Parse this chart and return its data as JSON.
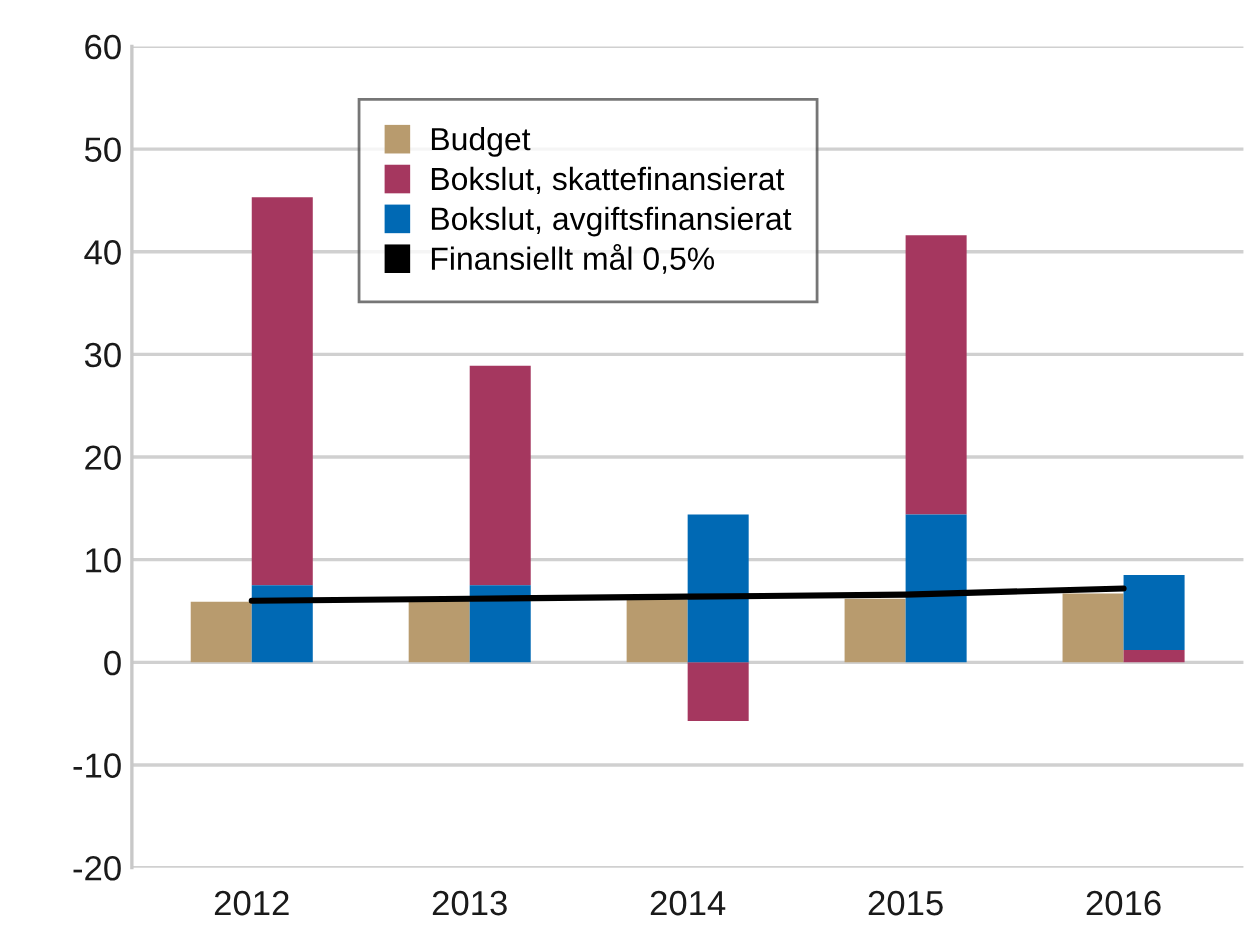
{
  "chart_data": {
    "type": "bar",
    "categories": [
      "2012",
      "2013",
      "2014",
      "2015",
      "2016"
    ],
    "series": [
      {
        "name": "Budget",
        "color": "#b89b6e",
        "values": [
          5.9,
          6.0,
          6.1,
          6.2,
          6.7
        ]
      },
      {
        "name": "Bokslut, skattefinansierat",
        "color": "#a5375f",
        "values": [
          37.8,
          21.4,
          -5.7,
          27.2,
          1.2
        ],
        "base": [
          7.5,
          7.5,
          0,
          14.4,
          0
        ]
      },
      {
        "name": "Bokslut, avgiftsfinansierat",
        "color": "#0069b4",
        "values": [
          7.5,
          7.5,
          14.4,
          14.4,
          7.3
        ],
        "base": [
          0,
          0,
          0,
          0,
          1.2
        ]
      },
      {
        "name": "Finansiellt mål 0,5%",
        "type": "line",
        "color": "#000000",
        "values": [
          6.0,
          6.2,
          6.4,
          6.6,
          7.2
        ]
      }
    ],
    "ylim": [
      -20,
      60
    ],
    "yticks": [
      -20,
      -10,
      0,
      10,
      20,
      30,
      40,
      50,
      60
    ],
    "grid": "y",
    "legend": "top"
  }
}
